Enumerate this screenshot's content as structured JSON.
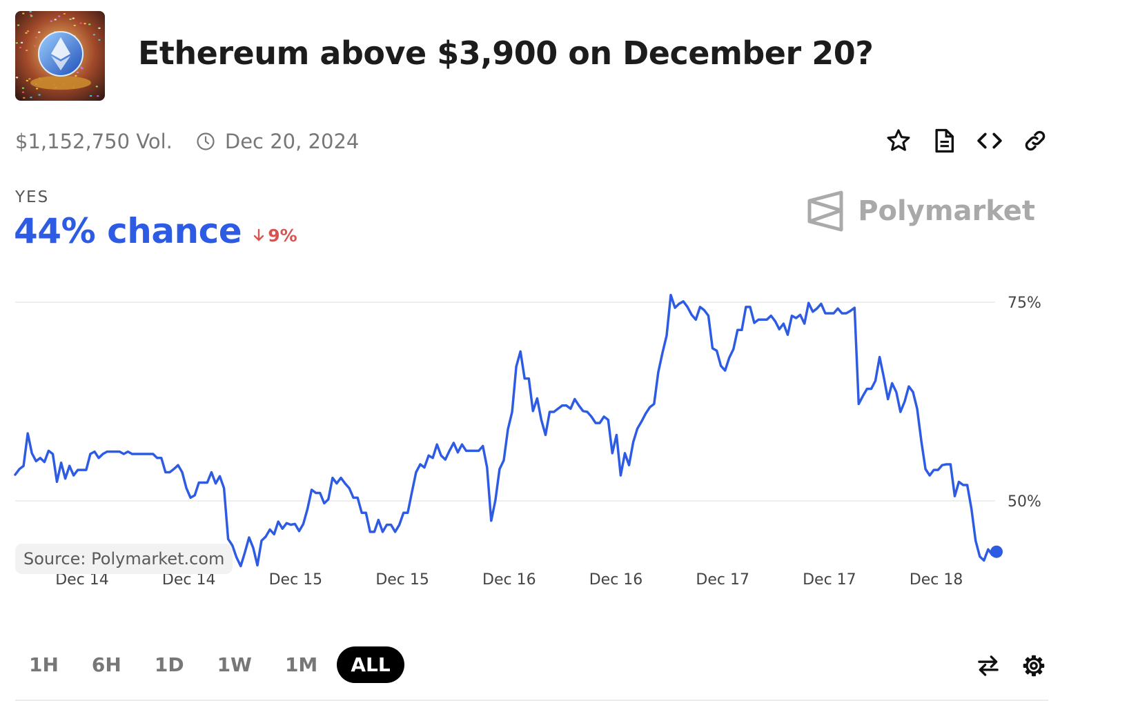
{
  "market": {
    "title": "Ethereum above $3,900 on December 20?",
    "volume": "$1,152,750 Vol.",
    "end_date": "Dec 20, 2024",
    "outcome": "YES",
    "chance": "44% chance",
    "change": "9%",
    "thumbnail_icon": "ethereum-coin-confetti-icon"
  },
  "brand": {
    "name": "Polymarket"
  },
  "source": "Source: Polymarket.com",
  "actions": [
    {
      "name": "star-icon"
    },
    {
      "name": "document-icon"
    },
    {
      "name": "code-embed-icon"
    },
    {
      "name": "link-icon"
    }
  ],
  "ranges": [
    {
      "label": "1H",
      "active": false
    },
    {
      "label": "6H",
      "active": false
    },
    {
      "label": "1D",
      "active": false
    },
    {
      "label": "1W",
      "active": false
    },
    {
      "label": "1M",
      "active": false
    },
    {
      "label": "ALL",
      "active": true
    }
  ],
  "tools": [
    {
      "name": "swap-arrows-icon"
    },
    {
      "name": "settings-gear-icon"
    }
  ],
  "colors": {
    "line": "#2d5be3",
    "down": "#d9534f",
    "grid": "#e8e8e8"
  },
  "chart_data": {
    "type": "line",
    "series": [
      {
        "values": [
          53.3,
          54.0,
          54.4,
          58.5,
          56.0,
          55.0,
          55.4,
          54.9,
          56.3,
          55.9,
          52.4,
          54.8,
          52.8,
          54.4,
          53.2,
          53.9,
          53.9,
          53.9,
          55.9,
          56.2,
          55.4,
          55.9,
          56.2,
          56.2,
          56.2,
          56.2,
          55.9,
          56.2,
          55.9,
          55.9,
          55.9,
          55.9,
          55.9,
          55.9,
          55.4,
          55.4,
          53.6,
          53.6,
          54.0,
          54.5,
          53.6,
          51.6,
          50.4,
          50.7,
          52.3,
          52.3,
          52.3,
          53.6,
          52.2,
          53.1,
          51.6,
          45.2,
          44.4,
          42.9,
          41.8,
          43.5,
          45.4,
          44.1,
          41.9,
          45.0,
          45.5,
          46.4,
          45.8,
          47.4,
          46.5,
          47.2,
          47.0,
          47.1,
          46.2,
          47.1,
          49.0,
          51.4,
          51.0,
          51.0,
          49.7,
          50.2,
          52.9,
          52.2,
          52.9,
          52.2,
          51.6,
          50.4,
          50.4,
          48.5,
          48.5,
          46.1,
          46.1,
          47.6,
          46.1,
          47.0,
          47.0,
          46.1,
          47.0,
          48.5,
          48.5,
          51.1,
          53.6,
          54.6,
          54.2,
          55.7,
          55.4,
          57.1,
          55.7,
          55.2,
          56.3,
          57.3,
          56.1,
          57.1,
          56.3,
          56.3,
          56.3,
          56.3,
          56.9,
          54.2,
          47.5,
          50.1,
          54.0,
          55.1,
          59.0,
          61.2,
          66.9,
          68.8,
          65.4,
          65.4,
          61.3,
          62.9,
          60.2,
          58.3,
          61.2,
          61.2,
          61.6,
          62.0,
          62.0,
          61.6,
          62.8,
          62.0,
          61.3,
          61.2,
          60.6,
          59.8,
          59.8,
          60.6,
          60.2,
          56.0,
          58.3,
          53.2,
          56.0,
          54.5,
          57.4,
          59.1,
          60.0,
          61.0,
          61.8,
          62.2,
          66.2,
          68.6,
          70.8,
          75.9,
          74.3,
          74.8,
          75.1,
          74.4,
          73.4,
          72.8,
          74.4,
          74.0,
          73.3,
          69.2,
          68.9,
          67.0,
          66.4,
          68.0,
          69.1,
          71.5,
          71.5,
          74.4,
          74.4,
          72.4,
          72.8,
          72.8,
          72.8,
          73.3,
          72.6,
          71.6,
          72.3,
          70.9,
          73.3,
          73.0,
          73.4,
          72.3,
          74.9,
          73.8,
          74.2,
          74.8,
          73.6,
          73.6,
          73.6,
          74.2,
          73.6,
          73.6,
          73.9,
          74.3,
          62.2,
          63.2,
          64.1,
          64.1,
          65.1,
          68.1,
          65.6,
          62.8,
          64.8,
          63.7,
          61.2,
          62.5,
          64.4,
          63.7,
          61.6,
          57.5,
          54.0,
          53.2,
          53.9,
          53.9,
          54.5,
          54.6,
          54.6,
          50.6,
          52.4,
          52.0,
          52.0,
          49.0,
          45.0,
          43.0,
          42.5,
          43.9,
          43.2,
          43.6
        ]
      }
    ],
    "x_labels": [
      "Dec 14",
      "Dec 14",
      "Dec 15",
      "Dec 15",
      "Dec 16",
      "Dec 16",
      "Dec 17",
      "Dec 17",
      "Dec 18"
    ],
    "y_ticks": [
      "75%",
      "50%"
    ],
    "ylim": [
      40,
      78
    ],
    "grid": true
  }
}
